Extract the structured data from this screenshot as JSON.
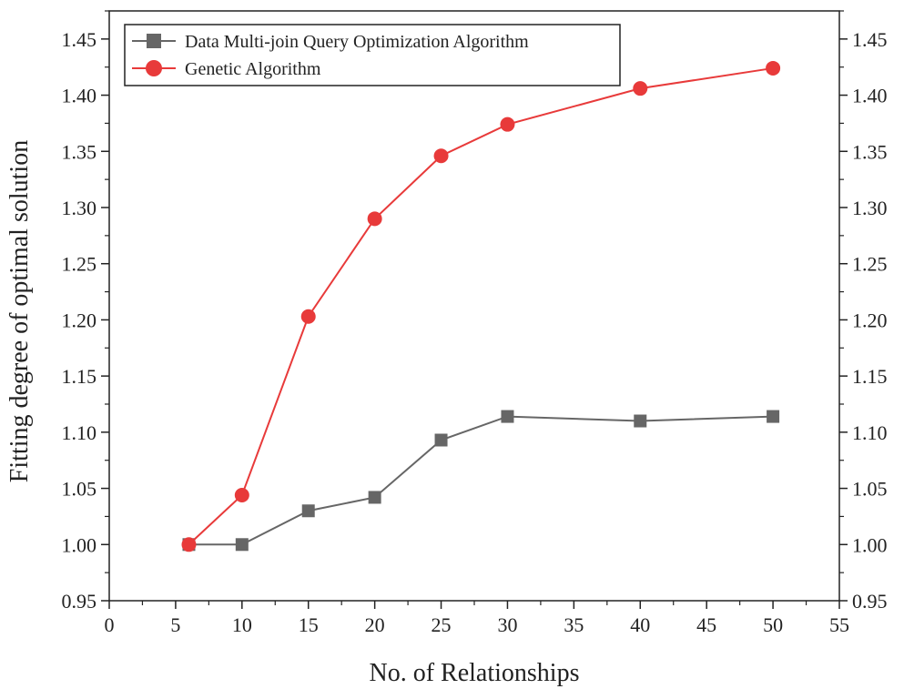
{
  "chart_data": {
    "type": "line",
    "xlabel": "No. of Relationships",
    "ylabel": "Fitting degree of optimal solution",
    "xlim": [
      0,
      55
    ],
    "ylim": [
      0.95,
      1.475
    ],
    "x_ticks": [
      0,
      5,
      10,
      15,
      20,
      25,
      30,
      35,
      40,
      45,
      50,
      55
    ],
    "y_ticks": [
      0.95,
      1.0,
      1.05,
      1.1,
      1.15,
      1.2,
      1.25,
      1.3,
      1.35,
      1.4,
      1.45
    ],
    "x_tick_labels": [
      "0",
      "5",
      "10",
      "15",
      "20",
      "25",
      "30",
      "35",
      "40",
      "45",
      "50",
      "55"
    ],
    "y_tick_labels": [
      "0.95",
      "1.00",
      "1.05",
      "1.10",
      "1.15",
      "1.20",
      "1.25",
      "1.30",
      "1.35",
      "1.40",
      "1.45"
    ],
    "grid": false,
    "legend_position": "top-left",
    "x": [
      6,
      10,
      15,
      20,
      25,
      30,
      40,
      50
    ],
    "series": [
      {
        "name": "Data Multi-join Query Optimization Algorithm",
        "values": [
          1.0,
          1.0,
          1.03,
          1.042,
          1.093,
          1.114,
          1.11,
          1.114
        ],
        "color": "#666666",
        "marker": "square"
      },
      {
        "name": "Genetic Algorithm",
        "values": [
          1.0,
          1.044,
          1.203,
          1.29,
          1.346,
          1.374,
          1.406,
          1.424
        ],
        "color": "#e83a3a",
        "marker": "circle"
      }
    ]
  }
}
